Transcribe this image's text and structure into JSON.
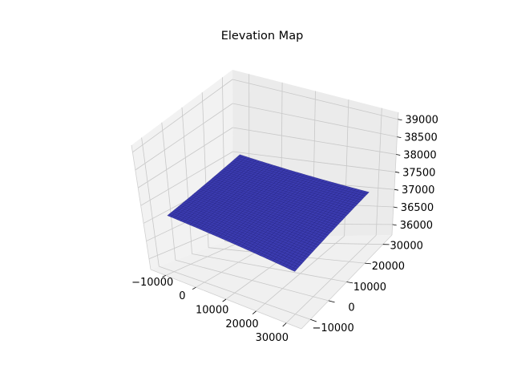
{
  "chart_data": {
    "type": "surface",
    "title": "Elevation Map",
    "xlabel": "",
    "ylabel": "",
    "zlabel": "",
    "grid": true,
    "x_ticks": [
      -10000,
      0,
      10000,
      20000,
      30000
    ],
    "y_ticks": [
      -10000,
      0,
      10000,
      20000,
      30000
    ],
    "z_ticks": [
      36000,
      36500,
      37000,
      37500,
      38000,
      38500,
      39000
    ],
    "x_tick_labels": [
      "−10000",
      "0",
      "10000",
      "20000",
      "30000"
    ],
    "y_tick_labels": [
      "−10000",
      "0",
      "10000",
      "20000",
      "30000"
    ],
    "z_tick_labels": [
      "36000",
      "36500",
      "37000",
      "37500",
      "38000",
      "38500",
      "39000"
    ],
    "xlim": [
      -15000,
      35000
    ],
    "ylim": [
      -15000,
      35000
    ],
    "zlim": [
      35700,
      39200
    ],
    "surface": {
      "x_range": [
        -10000,
        30000
      ],
      "y_range": [
        -10000,
        30000
      ],
      "z_corners": {
        "x_min_y_min": 37200,
        "x_max_y_min": 36700,
        "x_min_y_max": 37600,
        "x_max_y_max": 37100
      },
      "face_color": "#3b3bb0",
      "edge_color": "#1f1f80"
    },
    "pane_color": "#f2f2f2",
    "grid_color": "#c8c8c8"
  }
}
